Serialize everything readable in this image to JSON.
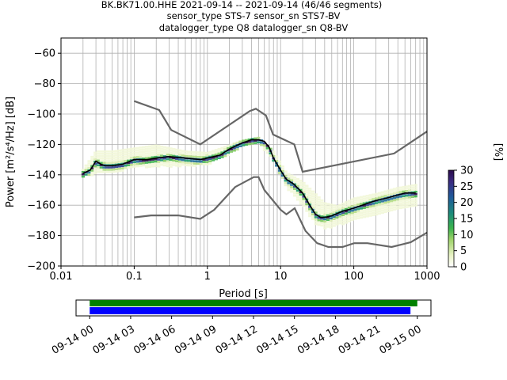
{
  "figure": {
    "title_lines": [
      "BK.BK71.00.HHE   2021-09-14 -- 2021-09-14  (46/46 segments)",
      "sensor_type STS-7 sensor_sn STS7-BV",
      "datalogger_type Q8 datalogger_sn Q8-BV"
    ]
  },
  "colors": {
    "grid": "#b0b0b0",
    "mean_line": "#000000",
    "noise_model": "#666666",
    "bar_top": "#008000",
    "bar_bottom": "#0000ff"
  },
  "chart_data": [
    {
      "type": "heatmap",
      "title": "",
      "xlabel": "Period [s]",
      "ylabel": "Power [m²/s⁴/Hz] [dB]",
      "xscale": "log",
      "xlim": [
        0.01,
        1000
      ],
      "ylim": [
        -200,
        -50
      ],
      "grid": true,
      "x_ticks": [
        {
          "value": 0.01,
          "label": "0.01"
        },
        {
          "value": 0.1,
          "label": "0.1"
        },
        {
          "value": 1,
          "label": "1"
        },
        {
          "value": 10,
          "label": "10"
        },
        {
          "value": 100,
          "label": "100"
        },
        {
          "value": 1000,
          "label": "1000"
        }
      ],
      "y_ticks": [
        {
          "value": -60,
          "label": "−60"
        },
        {
          "value": -80,
          "label": "−80"
        },
        {
          "value": -100,
          "label": "−100"
        },
        {
          "value": -120,
          "label": "−120"
        },
        {
          "value": -140,
          "label": "−140"
        },
        {
          "value": -160,
          "label": "−160"
        },
        {
          "value": -180,
          "label": "−180"
        },
        {
          "value": -200,
          "label": "−200"
        }
      ],
      "mean_curve": {
        "x": [
          0.02,
          0.025,
          0.03,
          0.035,
          0.04,
          0.05,
          0.07,
          0.1,
          0.15,
          0.2,
          0.3,
          0.5,
          0.8,
          1,
          1.5,
          2,
          3,
          4,
          5,
          6,
          7,
          8,
          10,
          12,
          15,
          20,
          25,
          30,
          35,
          40,
          50,
          70,
          100,
          150,
          200,
          300,
          500,
          700
        ],
        "y": [
          -139,
          -137,
          -131,
          -133,
          -134,
          -134,
          -133,
          -130,
          -130,
          -129,
          -128,
          -129,
          -130,
          -129,
          -127,
          -123,
          -119,
          -117,
          -117,
          -118,
          -122,
          -129,
          -137,
          -143,
          -146,
          -152,
          -160,
          -166,
          -168,
          -168,
          -167,
          -164,
          -162,
          -159,
          -157,
          -155,
          -152,
          -152
        ]
      },
      "noise_model_high": {
        "x": [
          0.1,
          0.22,
          0.32,
          0.8,
          3.8,
          4.6,
          6.3,
          7.9,
          15.4,
          20,
          354.8,
          1000
        ],
        "y": [
          -91.5,
          -97.4,
          -110.5,
          -120,
          -98,
          -96.5,
          -101,
          -113.5,
          -120,
          -138,
          -126,
          -111.5
        ]
      },
      "noise_model_low": {
        "x": [
          0.1,
          0.17,
          0.4,
          0.8,
          1.24,
          2.4,
          4.3,
          5,
          6,
          10,
          12,
          15.6,
          21.9,
          31.6,
          45,
          70,
          101,
          154,
          328,
          600,
          1000
        ],
        "y": [
          -168,
          -166.7,
          -166.7,
          -169,
          -163,
          -148,
          -141.5,
          -141.5,
          -150,
          -163,
          -166,
          -162,
          -177,
          -185,
          -187.5,
          -187.5,
          -185,
          -185,
          -187.5,
          -184.4,
          -178
        ]
      },
      "psd_spread": {
        "x": [
          0.02,
          0.03,
          0.05,
          0.1,
          0.2,
          0.5,
          1,
          2,
          3,
          5,
          8,
          12,
          20,
          30,
          40,
          60,
          100,
          200,
          400,
          700
        ],
        "y_low": [
          -141,
          -139,
          -138,
          -135,
          -134,
          -134,
          -133,
          -126,
          -121,
          -119,
          -130,
          -148,
          -160,
          -172,
          -175,
          -173,
          -170,
          -166,
          -162,
          -160
        ],
        "y_high": [
          -136,
          -124,
          -124,
          -122,
          -120,
          -124,
          -125,
          -120,
          -117,
          -115,
          -124,
          -138,
          -144,
          -152,
          -158,
          -160,
          -155,
          -152,
          -148,
          -146
        ]
      }
    },
    {
      "type": "bar",
      "description_free": true,
      "x_ticks": [
        "09-14 00",
        "09-14 03",
        "09-14 06",
        "09-14 09",
        "09-14 12",
        "09-14 15",
        "09-14 18",
        "09-14 21",
        "09-15 00"
      ],
      "x_range_hours": [
        -1,
        25
      ],
      "coverage_bars": [
        {
          "start_hour": 0,
          "end_hour": 24.0,
          "color": "#008000"
        },
        {
          "start_hour": 0,
          "end_hour": 23.5,
          "color": "#0000ff"
        }
      ]
    }
  ],
  "colorbar": {
    "label": "[%]",
    "min": 0,
    "max": 30,
    "ticks": [
      "0",
      "5",
      "10",
      "15",
      "20",
      "25",
      "30"
    ]
  }
}
